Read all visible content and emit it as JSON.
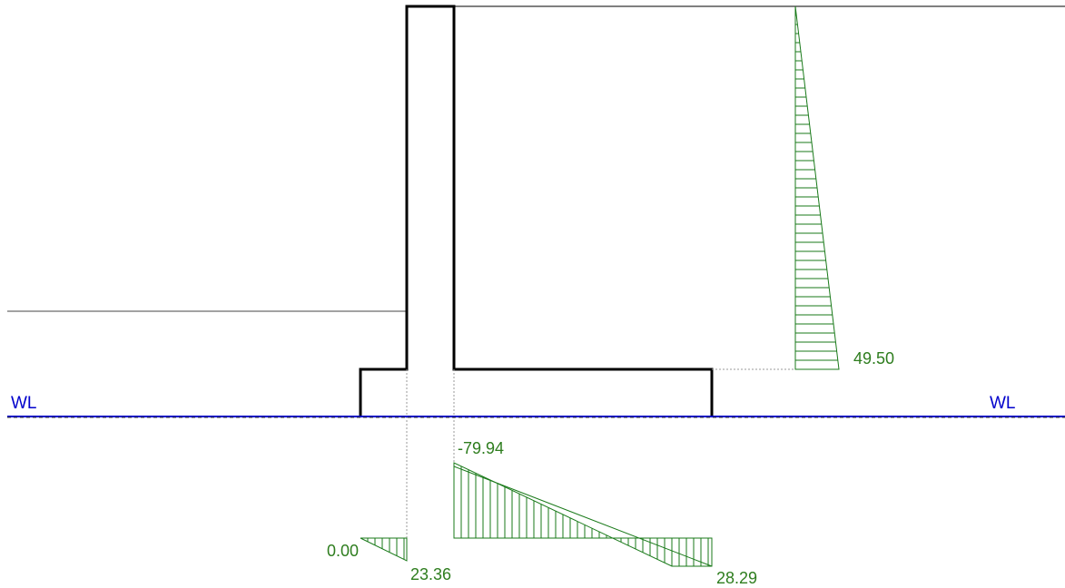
{
  "labels": {
    "wl_left": "WL",
    "wl_right": "WL",
    "stem_pressure_max": "49.50",
    "heel_moment": "-79.94",
    "toe_moment_zero": "0.00",
    "toe_moment_end": "23.36",
    "heel_moment_end": "28.29"
  },
  "colors": {
    "structure": "#000000",
    "water_line": "#0000cc",
    "diagram": "#1a7a1a",
    "diagram_text": "#2e7d1e",
    "guide": "#9a9a9a"
  }
}
